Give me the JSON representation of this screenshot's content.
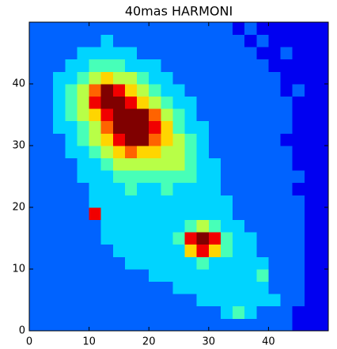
{
  "chart_data": {
    "type": "heatmap",
    "title": "40mas HARMONI",
    "colormap": "jet",
    "xlim": [
      0,
      50
    ],
    "ylim": [
      0,
      50
    ],
    "zlim": [
      0,
      9
    ],
    "xticks": [
      0,
      10,
      20,
      30,
      40
    ],
    "yticks": [
      0,
      10,
      20,
      30,
      40
    ],
    "z": [
      [
        2,
        2,
        2,
        2,
        2,
        2,
        2,
        2,
        2,
        2,
        2,
        2,
        2,
        2,
        2,
        2,
        2,
        2,
        2,
        2,
        2,
        2,
        1,
        1,
        1
      ],
      [
        2,
        2,
        2,
        2,
        2,
        2,
        2,
        2,
        2,
        2,
        2,
        2,
        2,
        2,
        2,
        2,
        3,
        4,
        3,
        2,
        2,
        2,
        1,
        1,
        1
      ],
      [
        2,
        2,
        2,
        2,
        2,
        2,
        2,
        2,
        2,
        2,
        2,
        2,
        2,
        2,
        3,
        3,
        3,
        3,
        3,
        3,
        3,
        2,
        2,
        1,
        1
      ],
      [
        2,
        2,
        2,
        2,
        2,
        2,
        2,
        2,
        2,
        2,
        2,
        2,
        3,
        3,
        3,
        3,
        3,
        3,
        3,
        3,
        2,
        2,
        2,
        1,
        1
      ],
      [
        2,
        2,
        2,
        2,
        2,
        2,
        2,
        2,
        2,
        2,
        3,
        3,
        3,
        3,
        3,
        3,
        3,
        3,
        3,
        4,
        2,
        2,
        2,
        1,
        1
      ],
      [
        2,
        2,
        2,
        2,
        2,
        2,
        2,
        2,
        3,
        3,
        3,
        3,
        3,
        3,
        4,
        3,
        3,
        3,
        3,
        3,
        2,
        2,
        2,
        1,
        1
      ],
      [
        2,
        2,
        2,
        2,
        2,
        2,
        2,
        3,
        3,
        3,
        3,
        3,
        3,
        6,
        8,
        6,
        4,
        3,
        3,
        2,
        2,
        2,
        2,
        1,
        1
      ],
      [
        2,
        2,
        2,
        2,
        2,
        2,
        3,
        3,
        3,
        3,
        3,
        3,
        4,
        8,
        9,
        8,
        4,
        3,
        3,
        2,
        2,
        2,
        2,
        1,
        1
      ],
      [
        2,
        2,
        2,
        2,
        2,
        2,
        3,
        3,
        3,
        3,
        3,
        3,
        3,
        4,
        5,
        4,
        3,
        3,
        2,
        2,
        2,
        2,
        2,
        1,
        1
      ],
      [
        2,
        2,
        2,
        2,
        2,
        8,
        3,
        3,
        3,
        3,
        3,
        3,
        3,
        3,
        3,
        3,
        3,
        2,
        2,
        2,
        2,
        2,
        2,
        1,
        1
      ],
      [
        2,
        2,
        2,
        2,
        2,
        3,
        3,
        3,
        3,
        3,
        3,
        3,
        3,
        3,
        3,
        3,
        3,
        2,
        2,
        2,
        2,
        2,
        2,
        1,
        1
      ],
      [
        2,
        2,
        2,
        2,
        2,
        3,
        3,
        3,
        4,
        3,
        3,
        4,
        3,
        3,
        3,
        3,
        2,
        2,
        2,
        2,
        2,
        2,
        1,
        1,
        1
      ],
      [
        2,
        2,
        2,
        2,
        3,
        3,
        3,
        4,
        4,
        4,
        4,
        4,
        4,
        4,
        3,
        3,
        2,
        2,
        2,
        2,
        2,
        2,
        2,
        1,
        1
      ],
      [
        2,
        2,
        2,
        2,
        3,
        3,
        4,
        5,
        5,
        5,
        5,
        5,
        5,
        4,
        3,
        3,
        2,
        2,
        2,
        2,
        2,
        2,
        1,
        1,
        1
      ],
      [
        2,
        2,
        2,
        3,
        3,
        4,
        5,
        6,
        7,
        6,
        6,
        5,
        5,
        4,
        3,
        2,
        2,
        2,
        2,
        2,
        2,
        2,
        1,
        1,
        1
      ],
      [
        2,
        2,
        2,
        3,
        4,
        5,
        6,
        8,
        9,
        9,
        7,
        6,
        5,
        4,
        3,
        2,
        2,
        2,
        2,
        2,
        2,
        1,
        1,
        1,
        1
      ],
      [
        2,
        2,
        3,
        3,
        4,
        5,
        7,
        9,
        9,
        9,
        8,
        6,
        4,
        3,
        3,
        2,
        2,
        2,
        2,
        2,
        2,
        2,
        1,
        1,
        1
      ],
      [
        2,
        2,
        3,
        4,
        5,
        6,
        8,
        9,
        9,
        9,
        7,
        5,
        4,
        3,
        2,
        2,
        2,
        2,
        2,
        2,
        2,
        2,
        1,
        1,
        1
      ],
      [
        2,
        2,
        3,
        4,
        5,
        8,
        9,
        9,
        8,
        6,
        5,
        4,
        3,
        3,
        2,
        2,
        2,
        2,
        2,
        2,
        2,
        2,
        1,
        1,
        1
      ],
      [
        2,
        2,
        3,
        4,
        5,
        7,
        9,
        8,
        6,
        5,
        4,
        3,
        3,
        2,
        2,
        2,
        2,
        2,
        2,
        2,
        2,
        1,
        2,
        1,
        1
      ],
      [
        2,
        2,
        3,
        3,
        4,
        5,
        6,
        5,
        5,
        4,
        3,
        3,
        2,
        2,
        2,
        2,
        2,
        2,
        2,
        2,
        2,
        1,
        1,
        1,
        1
      ],
      [
        2,
        2,
        2,
        3,
        3,
        4,
        4,
        4,
        3,
        3,
        3,
        2,
        2,
        2,
        2,
        2,
        2,
        2,
        2,
        2,
        1,
        1,
        1,
        1,
        1
      ],
      [
        2,
        2,
        2,
        2,
        3,
        3,
        3,
        3,
        3,
        2,
        2,
        2,
        2,
        2,
        2,
        2,
        2,
        2,
        2,
        1,
        1,
        2,
        1,
        1,
        1
      ],
      [
        2,
        2,
        2,
        2,
        2,
        2,
        3,
        2,
        2,
        2,
        2,
        2,
        2,
        2,
        2,
        2,
        2,
        2,
        1,
        2,
        1,
        1,
        1,
        1,
        1
      ],
      [
        2,
        2,
        2,
        2,
        2,
        2,
        2,
        2,
        2,
        2,
        2,
        2,
        2,
        2,
        2,
        2,
        2,
        1,
        2,
        1,
        1,
        1,
        1,
        1,
        1
      ]
    ]
  }
}
